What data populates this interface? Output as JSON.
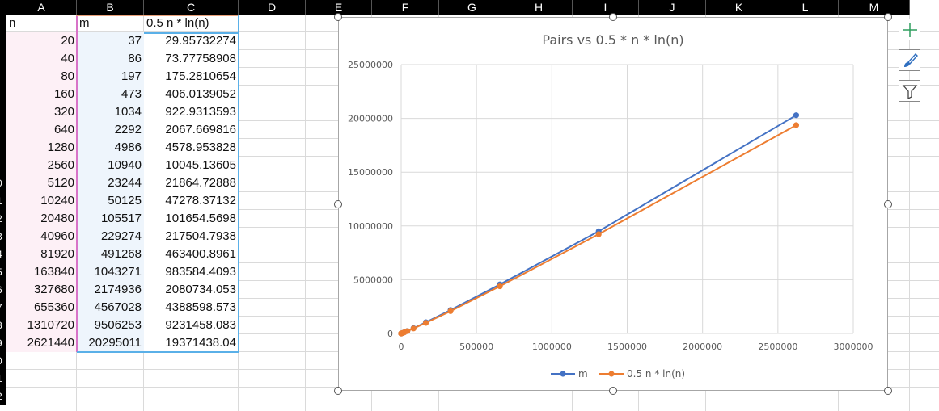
{
  "columns": [
    "A",
    "B",
    "C",
    "D",
    "E",
    "F",
    "G",
    "H",
    "I",
    "J",
    "K",
    "L",
    "M"
  ],
  "row_numbers": [
    "",
    "",
    "",
    "",
    "",
    "",
    "",
    "",
    "",
    "0",
    "1",
    "2",
    "3",
    "4",
    "5",
    "6",
    "7",
    "8",
    "9",
    "0",
    "1",
    "2"
  ],
  "table": {
    "headers": [
      "n",
      "m",
      "0.5 n * ln(n)"
    ],
    "rows": [
      [
        "20",
        "37",
        "29.95732274"
      ],
      [
        "40",
        "86",
        "73.77758908"
      ],
      [
        "80",
        "197",
        "175.2810654"
      ],
      [
        "160",
        "473",
        "406.0139052"
      ],
      [
        "320",
        "1034",
        "922.9313593"
      ],
      [
        "640",
        "2292",
        "2067.669816"
      ],
      [
        "1280",
        "4986",
        "4578.953828"
      ],
      [
        "2560",
        "10940",
        "10045.13605"
      ],
      [
        "5120",
        "23244",
        "21864.72888"
      ],
      [
        "10240",
        "50125",
        "47278.37132"
      ],
      [
        "20480",
        "105517",
        "101654.5698"
      ],
      [
        "40960",
        "229274",
        "217504.7938"
      ],
      [
        "81920",
        "491268",
        "463400.8961"
      ],
      [
        "163840",
        "1043271",
        "983584.4093"
      ],
      [
        "327680",
        "2174936",
        "2080734.053"
      ],
      [
        "655360",
        "4567028",
        "4388598.573"
      ],
      [
        "1310720",
        "9506253",
        "9231458.083"
      ],
      [
        "2621440",
        "20295011",
        "19371438.04"
      ]
    ]
  },
  "side_buttons": {
    "add_icon": "plus-icon",
    "style_icon": "paintbrush-icon",
    "filter_icon": "funnel-icon"
  },
  "chart_data": {
    "type": "scatter",
    "title": "Pairs vs 0.5 * n * ln(n)",
    "xlabel": "",
    "ylabel": "",
    "xlim": [
      0,
      3000000
    ],
    "ylim": [
      0,
      25000000
    ],
    "x_ticks": [
      "0",
      "500000",
      "1000000",
      "1500000",
      "2000000",
      "2500000",
      "3000000"
    ],
    "y_ticks": [
      "0",
      "5000000",
      "10000000",
      "15000000",
      "20000000",
      "25000000"
    ],
    "grid": true,
    "legend_position": "bottom",
    "x": [
      20,
      40,
      80,
      160,
      320,
      640,
      1280,
      2560,
      5120,
      10240,
      20480,
      40960,
      81920,
      163840,
      327680,
      655360,
      1310720,
      2621440
    ],
    "series": [
      {
        "name": "m",
        "color": "#4472C4",
        "values": [
          37,
          86,
          197,
          473,
          1034,
          2292,
          4986,
          10940,
          23244,
          50125,
          105517,
          229274,
          491268,
          1043271,
          2174936,
          4567028,
          9506253,
          20295011
        ]
      },
      {
        "name": "0.5 n * ln(n)",
        "color": "#ED7D31",
        "values": [
          29.96,
          73.78,
          175.28,
          406.01,
          922.93,
          2067.67,
          4578.95,
          10045.14,
          21864.73,
          47278.37,
          101654.57,
          217504.79,
          463400.9,
          983584.41,
          2080734.05,
          4388598.57,
          9231458.08,
          19371438.04
        ]
      }
    ]
  }
}
